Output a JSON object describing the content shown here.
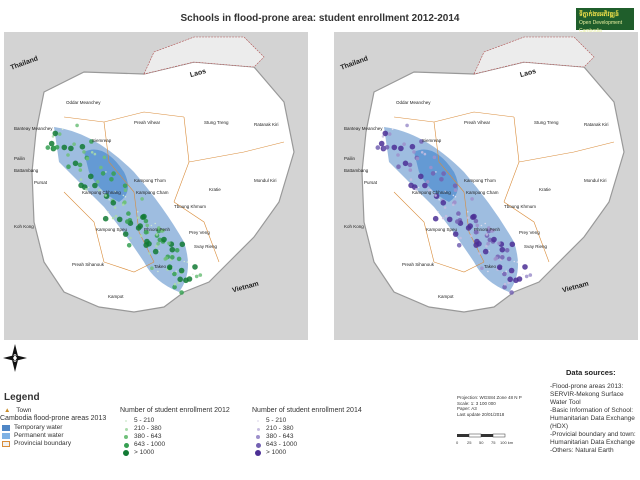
{
  "title": "Schools in flood-prone area: student enrollment 2012-2014",
  "logo": {
    "line1": "ទីភ្នាក់ងារអភិវឌ្ឍន៍",
    "line2": "Open Development Cambodia"
  },
  "countries": {
    "thailand": "Thailand",
    "laos": "Laos",
    "vietnam": "Vietnam"
  },
  "provinces": {
    "oddar": "Oddar Meanchey",
    "preah_vihear": "Preah Vihear",
    "stung_treng": "Stung Treng",
    "ratanak": "Ratanak Kiri",
    "banteay": "Banteay Meanchey",
    "siemreap": "Siemreap",
    "pailin": "Pailin",
    "battambang": "Battambang",
    "kampong_thom": "Kampong Thom",
    "pursat": "Pursat",
    "mondul": "Mondul Kiri",
    "kratie": "Kratie",
    "kampong_chhnang": "Kampong Chhnang",
    "kampong_cham": "Kampong Cham",
    "tbaung": "Tboung Khmum",
    "koh_kong": "Koh Kong",
    "kampong_speu": "Kampong Speu",
    "phnom_penh": "Phnom Penh",
    "prey_veng": "Prey Veng",
    "svay_rieng": "Svay Rieng",
    "takeo": "Takeo",
    "preah_sihanouk": "Preah Sihanouk",
    "kampot": "Kampot"
  },
  "legend": {
    "title": "Legend",
    "town": "Town",
    "flood_title": "Cambodia flood-prone areas 2013",
    "temporary": "Temporary water",
    "permanent": "Permanent water",
    "boundary": "Provincial boundary",
    "enroll_2012_title": "Number of student enrollment 2012",
    "enroll_2014_title": "Number of student enrollment 2014",
    "classes": [
      "5 - 210",
      "210 - 380",
      "380 - 643",
      "643 - 1000",
      "> 1000"
    ],
    "colors": {
      "temporary": "#4f86c6",
      "permanent": "#7fb2e5",
      "boundary": "#f2f2f2",
      "green_2012": [
        "#d5ecd4",
        "#a9dbaa",
        "#6fc07a",
        "#36a052",
        "#127a34"
      ],
      "purple_2014": [
        "#e6e2f1",
        "#c6bde0",
        "#9d90cb",
        "#7361b2",
        "#4b2f95"
      ]
    }
  },
  "meta": {
    "projection": "Projection: WGS84 Zone 48 N P",
    "scale": "Scale: 1: 3 100 000",
    "paper": "Paper: A3",
    "updated": "Last update 20/01/2018",
    "scale_labels": [
      "0",
      "25",
      "50",
      "75",
      "100 km"
    ]
  },
  "sources": {
    "title": "Data sources:",
    "items": [
      "-Flood-prone areas 2013:",
      "SERVIR-Mekong Surface Water Tool",
      "-Basic Information of School:",
      "Humanitarian Data Exchange (HDX)",
      "-Provicial boundary and town:",
      "Humanitarian Data Exchange",
      "-Others: Natural Earth"
    ]
  }
}
